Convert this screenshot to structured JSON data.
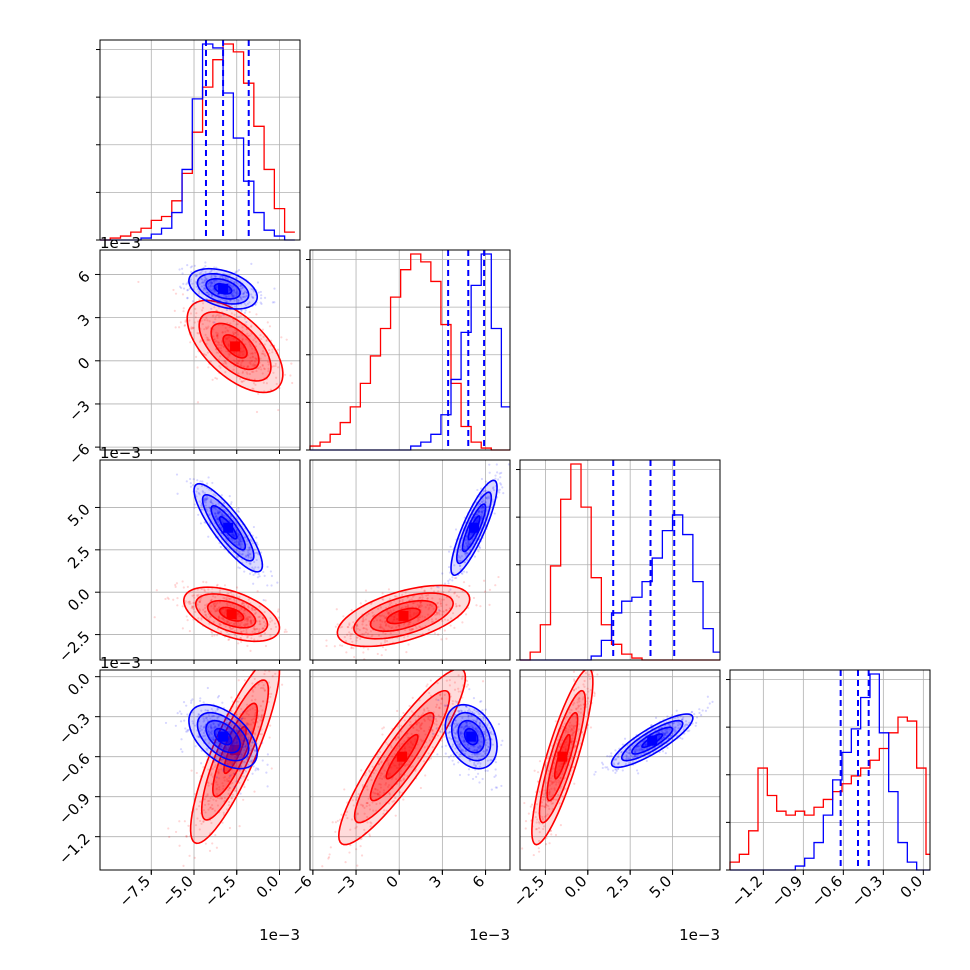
{
  "chart_data": {
    "type": "corner",
    "grid": true,
    "series_colors": {
      "series_a": "#ff0000",
      "series_b": "#0000ff"
    },
    "quantile_line_color": "#0000ff",
    "params": [
      {
        "id": "p0",
        "scale_label": "1e−3",
        "range": [
          -10.5,
          1.2
        ],
        "ticks": [
          -7.5,
          -5.0,
          -2.5,
          0.0
        ],
        "tick_labels": [
          "−7.5",
          "−5.0",
          "−2.5",
          "0.0"
        ],
        "hist_bins": [
          -10.5,
          -9.9,
          -9.3,
          -8.7,
          -8.1,
          -7.5,
          -6.9,
          -6.3,
          -5.7,
          -5.1,
          -4.5,
          -3.9,
          -3.3,
          -2.7,
          -2.1,
          -1.5,
          -0.9,
          -0.3,
          0.3,
          0.9
        ],
        "hist_red": [
          0,
          1,
          2,
          4,
          6,
          10,
          12,
          20,
          34,
          55,
          78,
          92,
          100,
          96,
          80,
          58,
          36,
          16,
          4
        ],
        "hist_blue": [
          0,
          0,
          0,
          0,
          1,
          3,
          6,
          14,
          36,
          72,
          100,
          98,
          75,
          52,
          30,
          14,
          5,
          2,
          0
        ],
        "quantiles": [
          -4.3,
          -3.3,
          -1.8
        ]
      },
      {
        "id": "p1",
        "scale_label": "1e−3",
        "range": [
          -6.2,
          7.7
        ],
        "ticks": [
          -6,
          -3,
          0,
          3,
          6
        ],
        "tick_labels": [
          "−6",
          "−3",
          "0",
          "3",
          "6"
        ],
        "hist_bins": [
          -6.2,
          -5.5,
          -4.8,
          -4.1,
          -3.4,
          -2.7,
          -2.0,
          -1.3,
          -0.6,
          0.1,
          0.8,
          1.5,
          2.2,
          2.9,
          3.6,
          4.3,
          5.0,
          5.7,
          6.4,
          7.1,
          7.7
        ],
        "hist_red": [
          2,
          4,
          8,
          14,
          22,
          34,
          48,
          62,
          78,
          92,
          100,
          96,
          86,
          64,
          34,
          12,
          4,
          1,
          0,
          0
        ],
        "hist_blue": [
          0,
          0,
          0,
          0,
          0,
          0,
          0,
          0,
          0,
          0,
          2,
          4,
          8,
          18,
          36,
          60,
          84,
          100,
          62,
          22
        ],
        "quantiles": [
          3.4,
          4.8,
          5.9
        ]
      },
      {
        "id": "p2",
        "scale_label": "1e−3",
        "range": [
          -4.0,
          7.8
        ],
        "ticks": [
          -2.5,
          0.0,
          2.5,
          5.0
        ],
        "tick_labels": [
          "−2.5",
          "0.0",
          "2.5",
          "5.0"
        ],
        "hist_bins": [
          -4.0,
          -3.4,
          -2.8,
          -2.2,
          -1.6,
          -1.0,
          -0.4,
          0.2,
          0.8,
          1.4,
          2.0,
          2.6,
          3.2,
          3.8,
          4.4,
          5.0,
          5.6,
          6.2,
          6.8,
          7.4,
          7.8
        ],
        "hist_red": [
          0,
          4,
          18,
          48,
          82,
          100,
          78,
          42,
          18,
          8,
          3,
          1,
          0,
          0,
          0,
          0,
          0,
          0,
          0,
          0
        ],
        "hist_blue": [
          0,
          0,
          0,
          0,
          0,
          0,
          0,
          2,
          10,
          24,
          30,
          32,
          40,
          52,
          66,
          74,
          64,
          40,
          16,
          4
        ],
        "quantiles": [
          1.5,
          3.7,
          5.1
        ]
      },
      {
        "id": "p3",
        "scale_label": "",
        "range": [
          -1.45,
          0.05
        ],
        "ticks": [
          -1.2,
          -0.9,
          -0.6,
          -0.3,
          0.0
        ],
        "tick_labels": [
          "−1.2",
          "−0.9",
          "−0.6",
          "−0.3",
          "0.0"
        ],
        "hist_bins": [
          -1.45,
          -1.38,
          -1.31,
          -1.24,
          -1.17,
          -1.1,
          -1.03,
          -0.96,
          -0.89,
          -0.82,
          -0.75,
          -0.68,
          -0.61,
          -0.54,
          -0.47,
          -0.4,
          -0.33,
          -0.26,
          -0.19,
          -0.12,
          -0.05,
          0.02,
          0.05
        ],
        "hist_red": [
          4,
          8,
          20,
          52,
          38,
          30,
          28,
          30,
          28,
          32,
          36,
          40,
          44,
          48,
          52,
          56,
          62,
          70,
          78,
          76,
          52,
          8
        ],
        "hist_blue": [
          0,
          0,
          0,
          0,
          0,
          0,
          0,
          2,
          6,
          14,
          28,
          46,
          60,
          72,
          88,
          100,
          70,
          40,
          14,
          4,
          0,
          0
        ],
        "quantiles": [
          -0.62,
          -0.49,
          -0.41
        ]
      }
    ],
    "row_scale_labels": [
      "1e−3",
      "1e−3",
      "1e−3"
    ],
    "column_scale_labels": [
      "1e−3",
      "1e−3",
      "1e−3"
    ],
    "pairs": [
      {
        "row": 1,
        "col": 0,
        "red": {
          "cx": -2.6,
          "cy": 1.0,
          "sx": 1.4,
          "sy": 1.6,
          "r": -0.6
        },
        "blue": {
          "cx": -3.3,
          "cy": 5.0,
          "sx": 1.0,
          "sy": 0.7,
          "r": -0.4
        }
      },
      {
        "row": 2,
        "col": 0,
        "red": {
          "cx": -2.8,
          "cy": -1.3,
          "sx": 1.4,
          "sy": 0.8,
          "r": -0.5
        },
        "blue": {
          "cx": -3.0,
          "cy": 3.8,
          "sx": 1.0,
          "sy": 1.3,
          "r": -0.85
        }
      },
      {
        "row": 2,
        "col": 1,
        "red": {
          "cx": 0.3,
          "cy": -1.4,
          "sx": 2.3,
          "sy": 0.9,
          "r": 0.55
        },
        "blue": {
          "cx": 5.2,
          "cy": 3.8,
          "sx": 0.8,
          "sy": 1.4,
          "r": 0.85
        }
      },
      {
        "row": 3,
        "col": 0,
        "red": {
          "cx": -2.6,
          "cy": -0.55,
          "sx": 1.3,
          "sy": 0.35,
          "r": 0.85
        },
        "blue": {
          "cx": -3.3,
          "cy": -0.45,
          "sx": 1.0,
          "sy": 0.12,
          "r": -0.5
        }
      },
      {
        "row": 3,
        "col": 1,
        "red": {
          "cx": 0.2,
          "cy": -0.6,
          "sx": 2.2,
          "sy": 0.33,
          "r": 0.9
        },
        "blue": {
          "cx": 5.0,
          "cy": -0.45,
          "sx": 0.9,
          "sy": 0.12,
          "r": -0.3
        }
      },
      {
        "row": 3,
        "col": 2,
        "red": {
          "cx": -1.5,
          "cy": -0.6,
          "sx": 0.9,
          "sy": 0.33,
          "r": 0.85
        },
        "blue": {
          "cx": 3.8,
          "cy": -0.48,
          "sx": 1.2,
          "sy": 0.1,
          "r": 0.85
        }
      }
    ]
  }
}
